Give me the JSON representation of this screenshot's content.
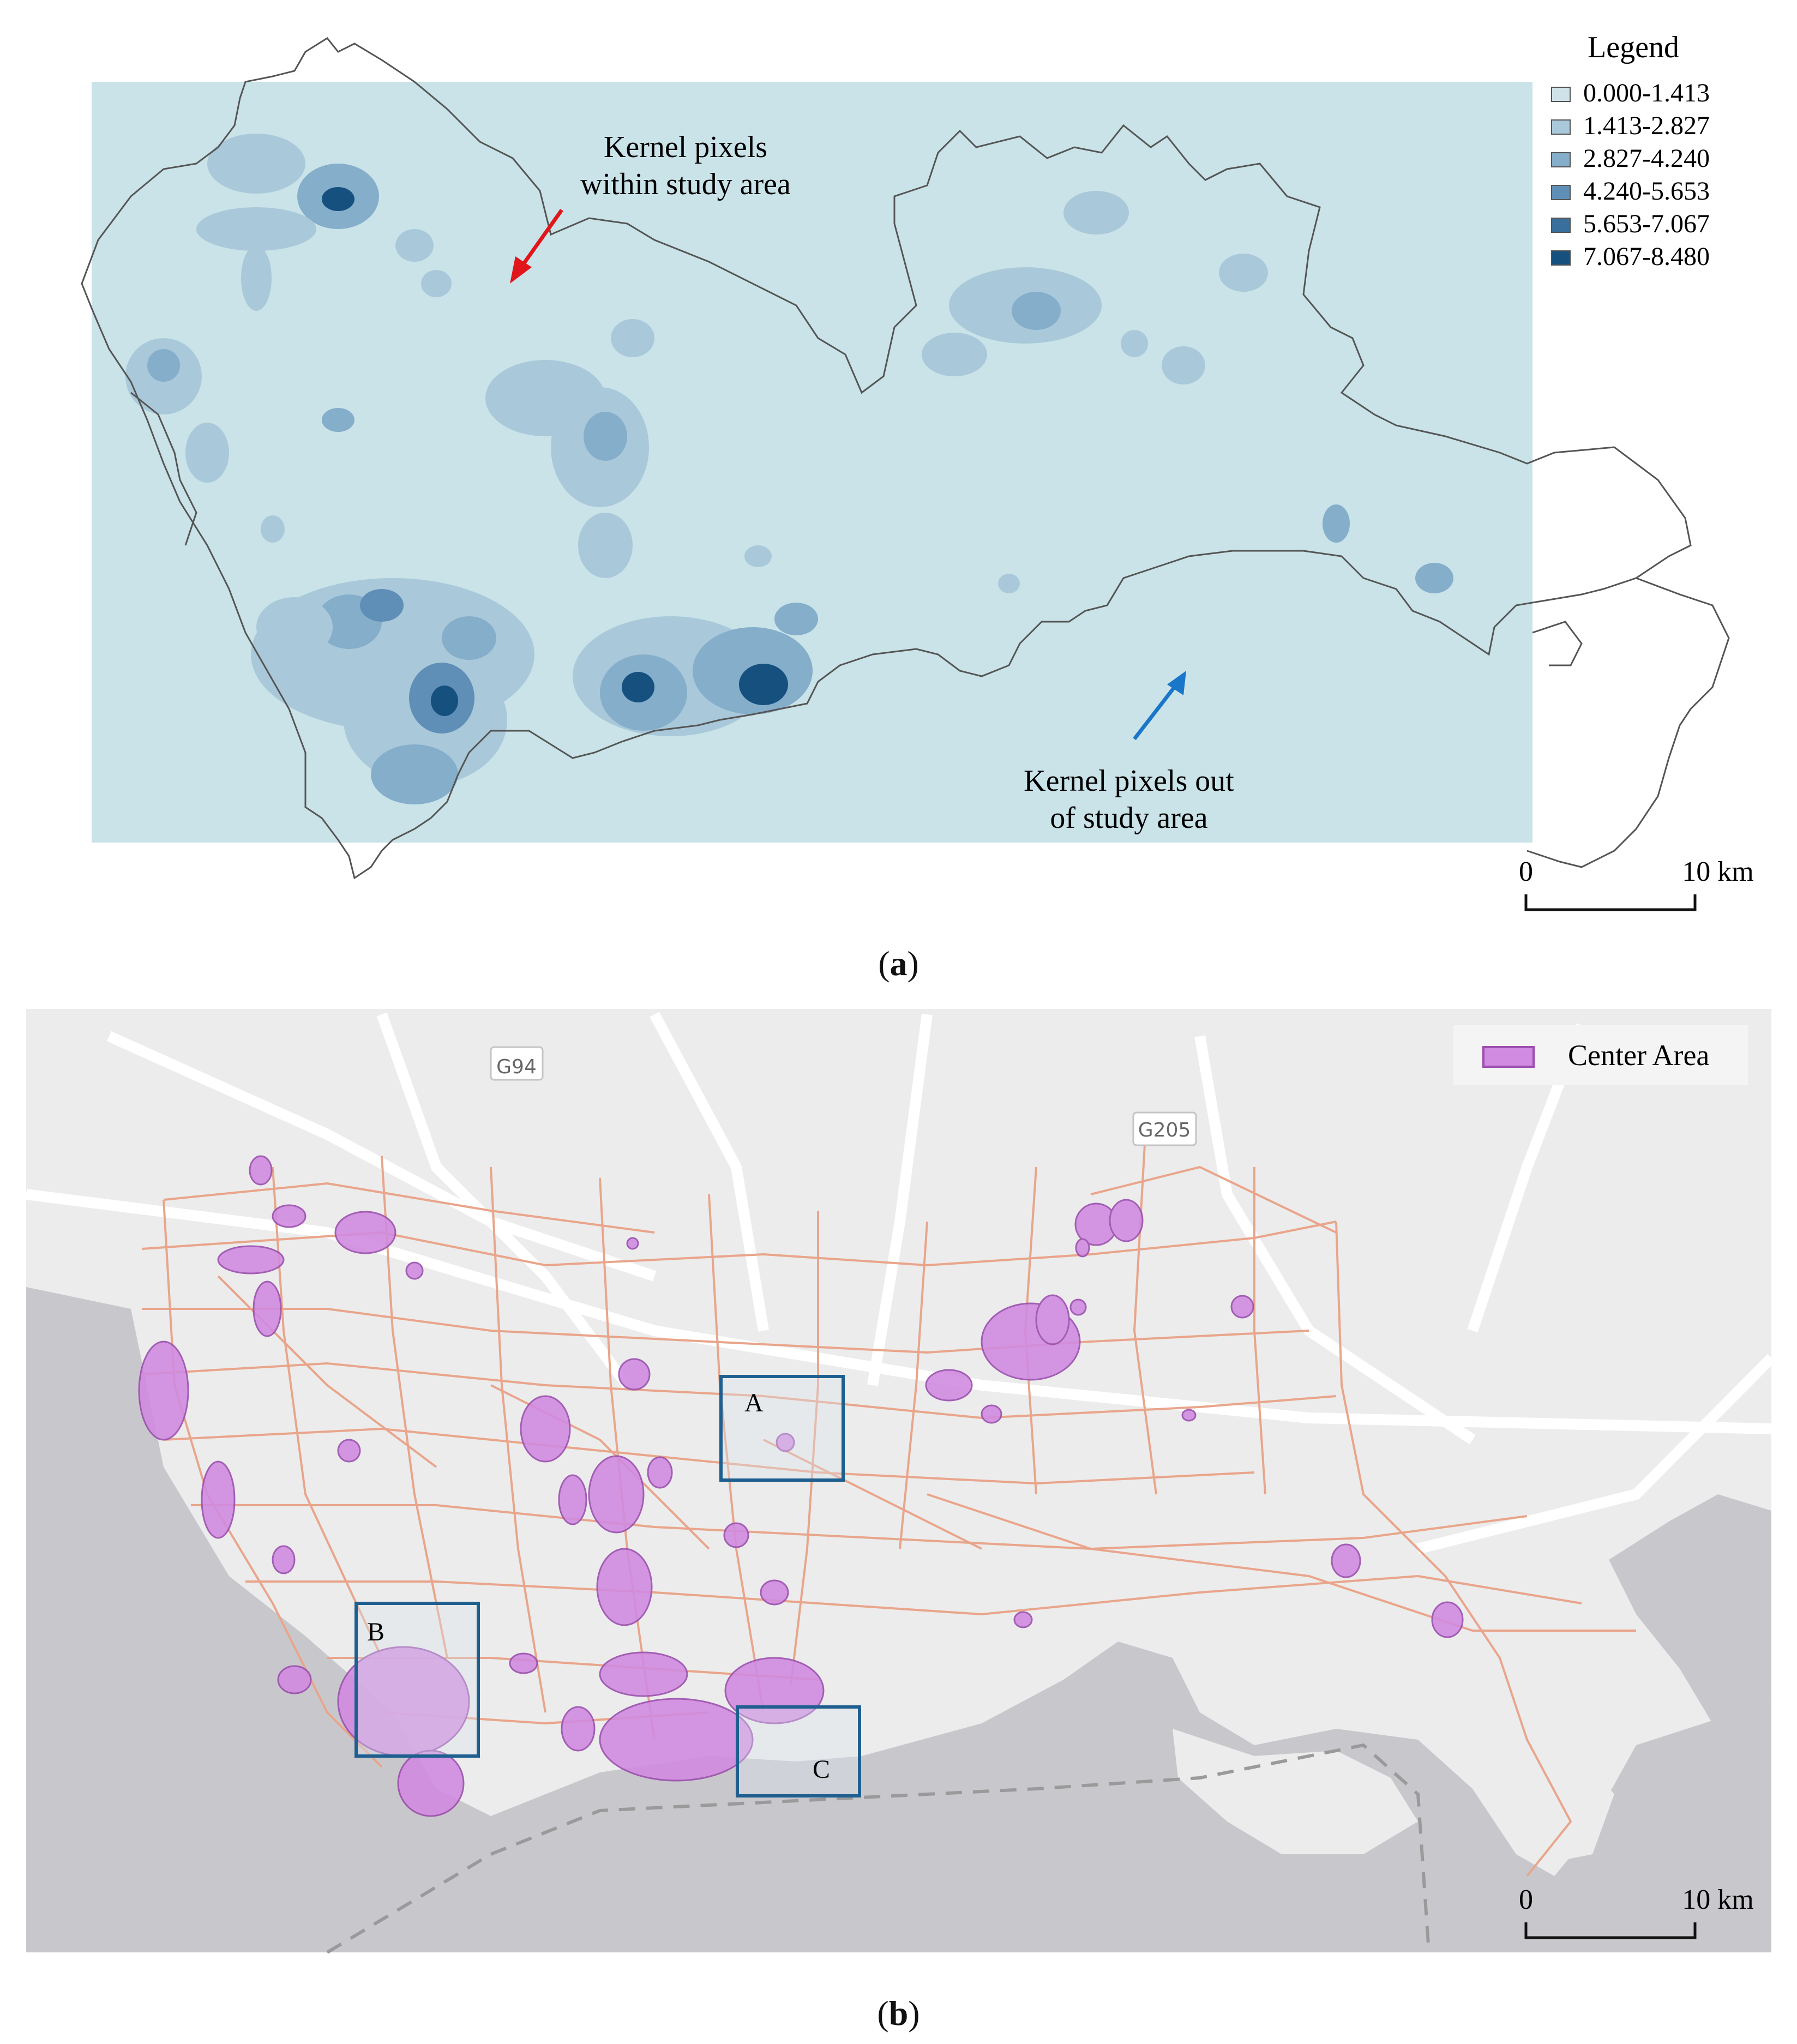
{
  "panel_a": {
    "legend_title": "Legend",
    "legend_items": [
      {
        "label": "0.000-1.413",
        "color": "#cfe2e8"
      },
      {
        "label": "1.413-2.827",
        "color": "#a9c9da"
      },
      {
        "label": "2.827-4.240",
        "color": "#85aecb"
      },
      {
        "label": "4.240-5.653",
        "color": "#5f8fb6"
      },
      {
        "label": "5.653-7.067",
        "color": "#3a6f9c"
      },
      {
        "label": "7.067-8.480",
        "color": "#15507f"
      }
    ],
    "annotation_in": [
      "Kernel pixels",
      "within study area"
    ],
    "annotation_out": [
      "Kernel pixels out",
      "of study area"
    ],
    "scale_zero": "0",
    "scale_end": "10 km",
    "caption_letter": "a"
  },
  "panel_b": {
    "legend_label": "Center Area",
    "legend_color": "#d79be0",
    "road_labels": [
      "G94",
      "G205"
    ],
    "box_labels": [
      "A",
      "B",
      "C"
    ],
    "scale_zero": "0",
    "scale_end": "10 km",
    "caption_letter": "b"
  },
  "colors": {
    "raster_bg": "#c9e3e8",
    "boundary": "#555555",
    "arrow_in": "#e0161b",
    "arrow_out": "#1976c9",
    "road": "#e9a58b",
    "box": "#1f5f8f",
    "center_fill": "#d18be0"
  }
}
